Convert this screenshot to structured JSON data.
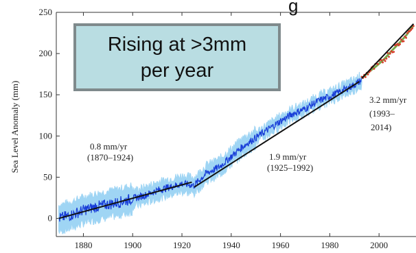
{
  "callout": {
    "line1": "Rising at >3mm",
    "line2": "per year"
  },
  "title_fragment": "g",
  "chart_data": {
    "type": "line",
    "ylabel": "Sea Level Anomaly (mm)",
    "xlim": [
      1869,
      2015
    ],
    "ylim": [
      -22,
      250
    ],
    "x_ticks": [
      1880,
      1900,
      1920,
      1940,
      1960,
      1980,
      2000
    ],
    "y_ticks": [
      0,
      50,
      100,
      150,
      200,
      250
    ],
    "grid": false,
    "colors": {
      "reconstruction": "#1a3fd8",
      "uncertainty": "#9fd5f4",
      "trend": "#111111",
      "satellite": "#d93a2b",
      "satellite_fit": "#7aa84a"
    },
    "series": [
      {
        "role": "tide_gauge_reconstruction",
        "x": [
          1870,
          1875,
          1880,
          1885,
          1890,
          1895,
          1900,
          1905,
          1910,
          1915,
          1920,
          1925,
          1930,
          1935,
          1940,
          1945,
          1950,
          1955,
          1960,
          1965,
          1970,
          1975,
          1980,
          1985,
          1990,
          1993
        ],
        "y": [
          0,
          4,
          10,
          14,
          17,
          20,
          24,
          28,
          34,
          38,
          42,
          40,
          55,
          62,
          75,
          88,
          98,
          108,
          118,
          127,
          133,
          142,
          148,
          155,
          162,
          168
        ]
      },
      {
        "role": "satellite_altimetry",
        "x": [
          1993,
          1996,
          1999,
          2002,
          2005,
          2008,
          2011,
          2014
        ],
        "y": [
          170,
          178,
          185,
          193,
          203,
          212,
          222,
          234
        ]
      }
    ],
    "trends": [
      {
        "label": "0.8 mm/yr",
        "period": "(1870–1924)",
        "x": [
          1870,
          1924
        ],
        "y": [
          0,
          44
        ]
      },
      {
        "label": "1.9 mm/yr",
        "period": "(1925–1992)",
        "x": [
          1925,
          1992
        ],
        "y": [
          38,
          166
        ]
      },
      {
        "label": "3.2 mm/yr",
        "period_line1": "(1993–",
        "period_line2": "2014)",
        "x": [
          1993,
          2014
        ],
        "y": [
          170,
          236
        ]
      }
    ]
  }
}
